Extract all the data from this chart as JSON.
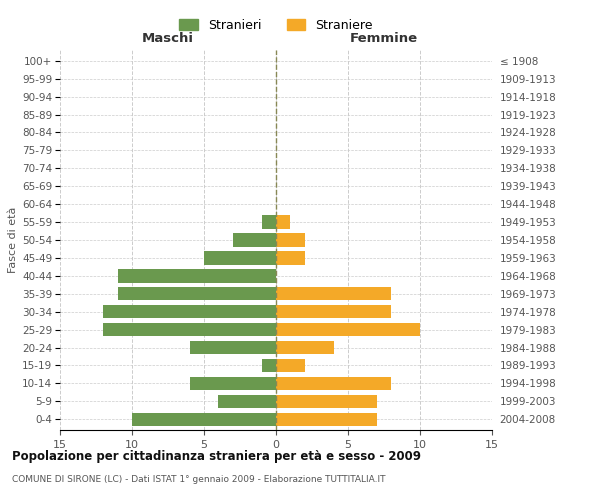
{
  "age_groups": [
    "0-4",
    "5-9",
    "10-14",
    "15-19",
    "20-24",
    "25-29",
    "30-34",
    "35-39",
    "40-44",
    "45-49",
    "50-54",
    "55-59",
    "60-64",
    "65-69",
    "70-74",
    "75-79",
    "80-84",
    "85-89",
    "90-94",
    "95-99",
    "100+"
  ],
  "birth_years": [
    "2004-2008",
    "1999-2003",
    "1994-1998",
    "1989-1993",
    "1984-1988",
    "1979-1983",
    "1974-1978",
    "1969-1973",
    "1964-1968",
    "1959-1963",
    "1954-1958",
    "1949-1953",
    "1944-1948",
    "1939-1943",
    "1934-1938",
    "1929-1933",
    "1924-1928",
    "1919-1923",
    "1914-1918",
    "1909-1913",
    "≤ 1908"
  ],
  "males": [
    10,
    4,
    6,
    1,
    6,
    12,
    12,
    11,
    11,
    5,
    3,
    1,
    0,
    0,
    0,
    0,
    0,
    0,
    0,
    0,
    0
  ],
  "females": [
    7,
    7,
    8,
    2,
    4,
    10,
    8,
    8,
    0,
    2,
    2,
    1,
    0,
    0,
    0,
    0,
    0,
    0,
    0,
    0,
    0
  ],
  "male_color": "#6a994e",
  "female_color": "#f4a928",
  "title": "Popolazione per cittadinanza straniera per età e sesso - 2009",
  "subtitle": "COMUNE DI SIRONE (LC) - Dati ISTAT 1° gennaio 2009 - Elaborazione TUTTITALIA.IT",
  "xlabel_left": "Maschi",
  "xlabel_right": "Femmine",
  "ylabel_left": "Fasce di età",
  "legend_male": "Stranieri",
  "legend_female": "Straniere",
  "xlim": 15,
  "background_color": "#ffffff",
  "grid_color": "#cccccc",
  "centerline_color": "#888855"
}
